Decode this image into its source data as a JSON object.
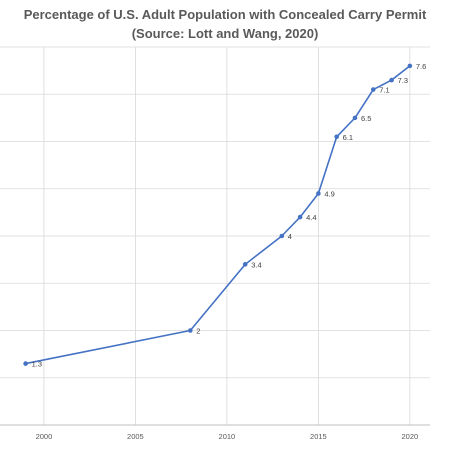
{
  "chart_data": {
    "type": "line",
    "title": "Percentage of U.S. Adult Population with Concealed Carry Permit",
    "subtitle": "(Source: Lott and Wang, 2020)",
    "xlabel": "",
    "ylabel": "",
    "x_ticks": [
      2000,
      2005,
      2010,
      2015,
      2020
    ],
    "xlim": [
      1997.6,
      2021.1
    ],
    "ylim": [
      0,
      8
    ],
    "grid": {
      "vertical": true,
      "horizontal": true
    },
    "series": [
      {
        "color": "#4472c4",
        "points": [
          {
            "x": 1999,
            "y": 1.3,
            "label": "1.3"
          },
          {
            "x": 2008,
            "y": 2,
            "label": "2"
          },
          {
            "x": 2011,
            "y": 3.4,
            "label": "3.4"
          },
          {
            "x": 2013,
            "y": 4,
            "label": "4"
          },
          {
            "x": 2014,
            "y": 4.4,
            "label": "4.4"
          },
          {
            "x": 2015,
            "y": 4.9,
            "label": "4.9"
          },
          {
            "x": 2016,
            "y": 6.1,
            "label": "6.1"
          },
          {
            "x": 2017,
            "y": 6.5,
            "label": "6.5"
          },
          {
            "x": 2018,
            "y": 7.1,
            "label": "7.1"
          },
          {
            "x": 2019,
            "y": 7.3,
            "label": "7.3"
          },
          {
            "x": 2020,
            "y": 7.6,
            "label": "7.6"
          }
        ]
      }
    ]
  }
}
